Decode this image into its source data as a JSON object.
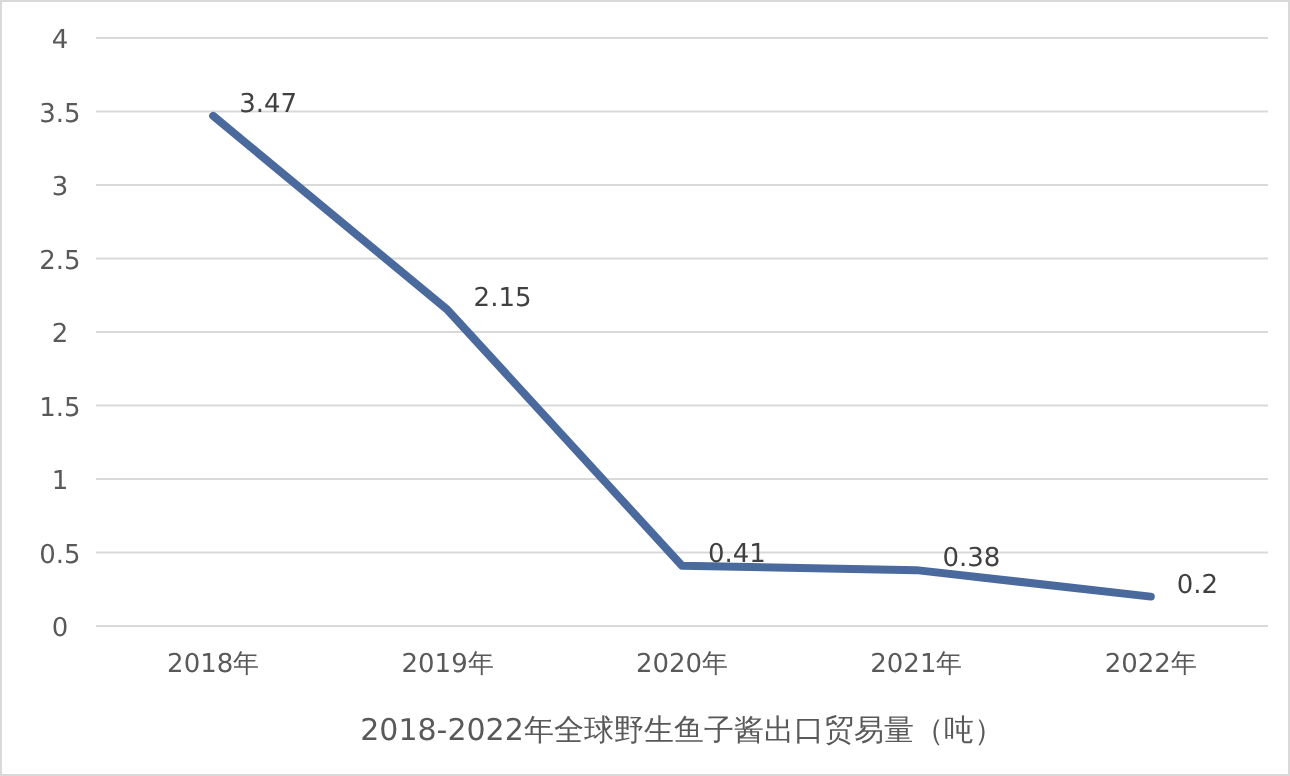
{
  "chart_data": {
    "type": "line",
    "title": "2018-2022年全球野生鱼子酱出口贸易量（吨）",
    "categories": [
      "2018年",
      "2019年",
      "2020年",
      "2021年",
      "2022年"
    ],
    "series": [
      {
        "color": "#4a6a9e",
        "values": [
          3.47,
          2.15,
          0.41,
          0.38,
          0.2
        ]
      }
    ],
    "ylim": [
      0,
      4
    ],
    "yticks": [
      0,
      0.5,
      1,
      1.5,
      2,
      2.5,
      3,
      3.5,
      4
    ],
    "grid": "y",
    "data_labels": true,
    "marker": "none",
    "line_style": "solid"
  }
}
